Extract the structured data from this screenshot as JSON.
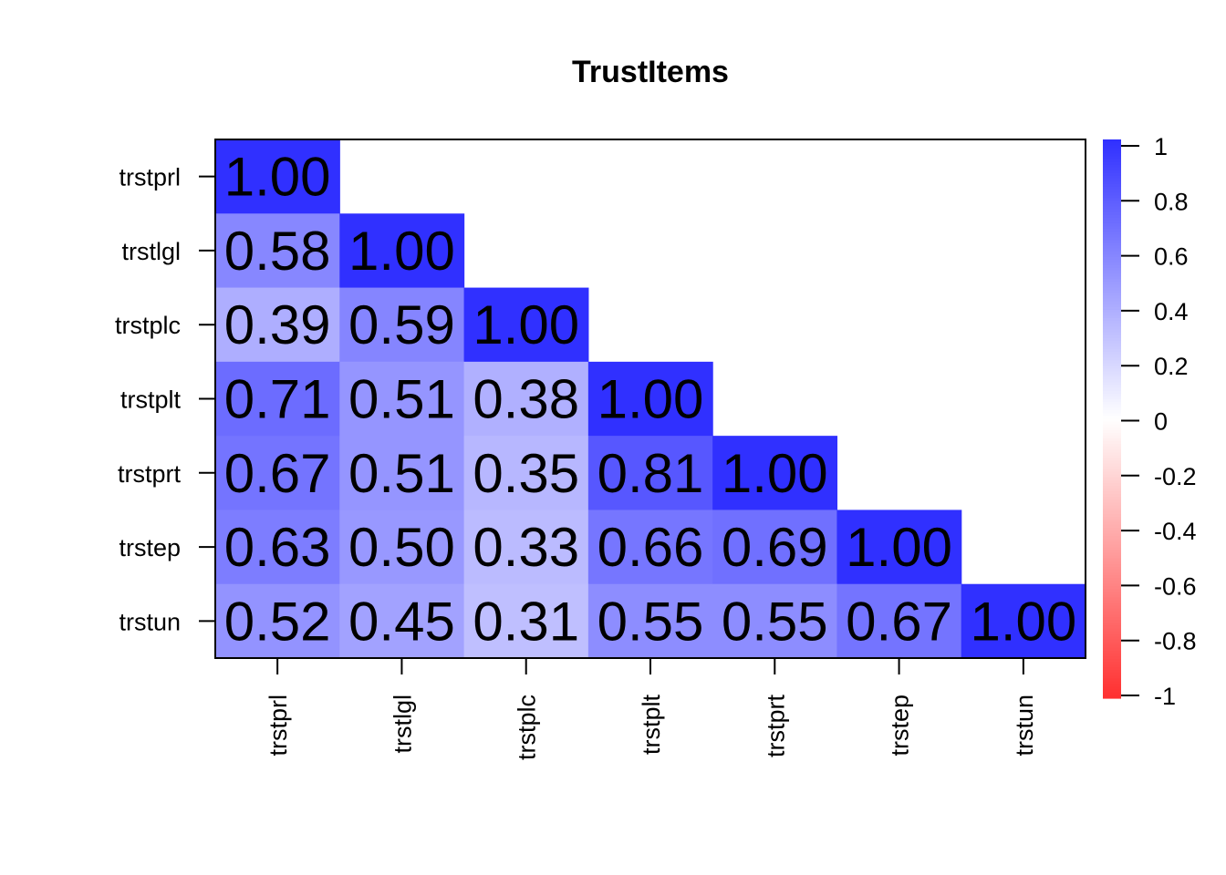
{
  "chart_data": {
    "type": "heatmap",
    "title": "TrustItems",
    "variables": [
      "trstprl",
      "trstlgl",
      "trstplc",
      "trstplt",
      "trstprt",
      "trstep",
      "trstun"
    ],
    "matrix_shape": "lower-triangular",
    "values": [
      [
        1.0
      ],
      [
        0.58,
        1.0
      ],
      [
        0.39,
        0.59,
        1.0
      ],
      [
        0.71,
        0.51,
        0.38,
        1.0
      ],
      [
        0.67,
        0.51,
        0.35,
        0.81,
        1.0
      ],
      [
        0.63,
        0.5,
        0.33,
        0.66,
        0.69,
        1.0
      ],
      [
        0.52,
        0.45,
        0.31,
        0.55,
        0.55,
        0.67,
        1.0
      ]
    ],
    "value_labels": [
      [
        "1.00"
      ],
      [
        "0.58",
        "1.00"
      ],
      [
        "0.39",
        "0.59",
        "1.00"
      ],
      [
        "0.71",
        "0.51",
        "0.38",
        "1.00"
      ],
      [
        "0.67",
        "0.51",
        "0.35",
        "0.81",
        "1.00"
      ],
      [
        "0.63",
        "0.50",
        "0.33",
        "0.66",
        "0.69",
        "1.00"
      ],
      [
        "0.52",
        "0.45",
        "0.31",
        "0.55",
        "0.55",
        "0.67",
        "1.00"
      ]
    ],
    "color_scale": {
      "range": [
        -1,
        1
      ],
      "low_color": "#FF3030",
      "mid_color": "#FFFFFF",
      "high_color": "#3030FF",
      "ticks": [
        "1",
        "0.8",
        "0.6",
        "0.4",
        "0.2",
        "0",
        "-0.2",
        "-0.4",
        "-0.6",
        "-0.8",
        "-1"
      ]
    },
    "legend_placement": "right",
    "x_tick_orientation": "vertical"
  }
}
